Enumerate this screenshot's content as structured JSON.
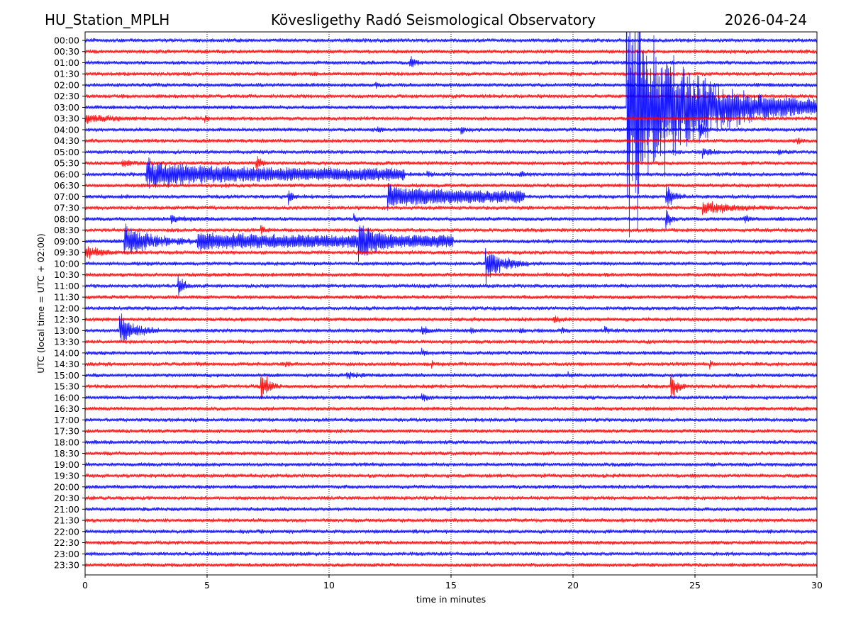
{
  "header": {
    "station": "HU_Station_MPLH",
    "observatory": "Kövesligethy Radó Seismological Observatory",
    "date": "2026-04-24"
  },
  "chart_data": {
    "type": "line",
    "subtype": "helicorder",
    "xlabel": "time in minutes",
    "ylabel": "UTC (local time = UTC + 02:00)",
    "xlim": [
      0,
      30
    ],
    "xticks": [
      "0",
      "5",
      "10",
      "15",
      "20",
      "25",
      "30"
    ],
    "grid": "vertical dotted at x ticks",
    "colors": [
      "#0000ff",
      "#ff0000"
    ],
    "rows": [
      "00:00",
      "00:30",
      "01:00",
      "01:30",
      "02:00",
      "02:30",
      "03:00",
      "03:30",
      "04:00",
      "04:30",
      "05:00",
      "05:30",
      "06:00",
      "06:30",
      "07:00",
      "07:30",
      "08:00",
      "08:30",
      "09:00",
      "09:30",
      "10:00",
      "10:30",
      "11:00",
      "11:30",
      "12:00",
      "12:30",
      "13:00",
      "13:30",
      "14:00",
      "14:30",
      "15:00",
      "15:30",
      "16:00",
      "16:30",
      "17:00",
      "17:30",
      "18:00",
      "18:30",
      "19:00",
      "19:30",
      "20:00",
      "20:30",
      "21:00",
      "21:30",
      "22:00",
      "22:30",
      "23:00",
      "23:30"
    ],
    "noise_amplitude": 0.15,
    "events": [
      {
        "row": "01:00",
        "start": 13.3,
        "duration": 0.5,
        "amplitude": 0.6
      },
      {
        "row": "02:00",
        "start": 11.9,
        "duration": 0.3,
        "amplitude": 0.3
      },
      {
        "row": "03:00",
        "start": 22.2,
        "duration": 7.8,
        "amplitude": 12
      },
      {
        "row": "03:30",
        "start": 0,
        "duration": 3.2,
        "amplitude": 0.35
      },
      {
        "row": "03:30",
        "start": 4.9,
        "duration": 0.3,
        "amplitude": 0.5
      },
      {
        "row": "04:00",
        "start": 25.2,
        "duration": 0.5,
        "amplitude": 0.8
      },
      {
        "row": "04:00",
        "start": 12.0,
        "duration": 0.4,
        "amplitude": 0.3
      },
      {
        "row": "04:00",
        "start": 15.4,
        "duration": 0.6,
        "amplitude": 0.3
      },
      {
        "row": "04:30",
        "start": 29.2,
        "duration": 0.5,
        "amplitude": 0.3
      },
      {
        "row": "05:00",
        "start": 25.3,
        "duration": 0.9,
        "amplitude": 0.45
      },
      {
        "row": "05:00",
        "start": 28.4,
        "duration": 0.4,
        "amplitude": 0.3
      },
      {
        "row": "05:30",
        "start": 7.0,
        "duration": 0.5,
        "amplitude": 0.9
      },
      {
        "row": "05:30",
        "start": 1.5,
        "duration": 1.5,
        "amplitude": 0.3
      },
      {
        "row": "06:00",
        "start": 2.5,
        "duration": 0.3,
        "amplitude": 2.0
      },
      {
        "row": "06:00",
        "start": 2.6,
        "duration": 10.5,
        "amplitude": 0.7
      },
      {
        "row": "06:00",
        "start": 14.0,
        "duration": 0.6,
        "amplitude": 0.3
      },
      {
        "row": "06:00",
        "start": 17.8,
        "duration": 0.6,
        "amplitude": 0.3
      },
      {
        "row": "07:00",
        "start": 8.3,
        "duration": 0.4,
        "amplitude": 1.0
      },
      {
        "row": "07:00",
        "start": 12.4,
        "duration": 5.6,
        "amplitude": 0.7
      },
      {
        "row": "07:00",
        "start": 23.8,
        "duration": 0.8,
        "amplitude": 1.3
      },
      {
        "row": "07:30",
        "start": 25.3,
        "duration": 3.0,
        "amplitude": 0.7
      },
      {
        "row": "08:00",
        "start": 3.5,
        "duration": 1.8,
        "amplitude": 0.3
      },
      {
        "row": "08:00",
        "start": 11.0,
        "duration": 0.3,
        "amplitude": 0.5
      },
      {
        "row": "08:00",
        "start": 23.8,
        "duration": 0.6,
        "amplitude": 0.9
      },
      {
        "row": "08:00",
        "start": 27.0,
        "duration": 0.6,
        "amplitude": 0.4
      },
      {
        "row": "08:30",
        "start": 7.2,
        "duration": 0.6,
        "amplitude": 0.45
      },
      {
        "row": "09:00",
        "start": 1.6,
        "duration": 3.0,
        "amplitude": 1.8
      },
      {
        "row": "09:00",
        "start": 4.6,
        "duration": 10.5,
        "amplitude": 0.35
      },
      {
        "row": "09:00",
        "start": 11.2,
        "duration": 1.6,
        "amplitude": 1.8
      },
      {
        "row": "09:30",
        "start": 0,
        "duration": 1.8,
        "amplitude": 0.55
      },
      {
        "row": "10:00",
        "start": 16.4,
        "duration": 1.8,
        "amplitude": 1.9
      },
      {
        "row": "11:00",
        "start": 3.8,
        "duration": 0.6,
        "amplitude": 1.3
      },
      {
        "row": "12:30",
        "start": 19.2,
        "duration": 0.5,
        "amplitude": 0.4
      },
      {
        "row": "13:00",
        "start": 1.4,
        "duration": 1.6,
        "amplitude": 1.6
      },
      {
        "row": "13:00",
        "start": 13.8,
        "duration": 0.8,
        "amplitude": 0.3
      },
      {
        "row": "13:00",
        "start": 15.8,
        "duration": 0.4,
        "amplitude": 0.3
      },
      {
        "row": "13:00",
        "start": 17.8,
        "duration": 0.4,
        "amplitude": 0.3
      },
      {
        "row": "13:00",
        "start": 19.5,
        "duration": 0.5,
        "amplitude": 0.35
      },
      {
        "row": "13:00",
        "start": 21.3,
        "duration": 0.3,
        "amplitude": 0.3
      },
      {
        "row": "14:00",
        "start": 13.8,
        "duration": 0.5,
        "amplitude": 0.3
      },
      {
        "row": "14:30",
        "start": 8.2,
        "duration": 0.3,
        "amplitude": 0.35
      },
      {
        "row": "14:30",
        "start": 14.2,
        "duration": 0.3,
        "amplitude": 0.35
      },
      {
        "row": "14:30",
        "start": 25.6,
        "duration": 0.3,
        "amplitude": 0.4
      },
      {
        "row": "15:00",
        "start": 10.7,
        "duration": 1.0,
        "amplitude": 0.35
      },
      {
        "row": "15:00",
        "start": 19.8,
        "duration": 0.3,
        "amplitude": 0.35
      },
      {
        "row": "15:30",
        "start": 7.2,
        "duration": 0.7,
        "amplitude": 2.3
      },
      {
        "row": "15:30",
        "start": 24.0,
        "duration": 0.6,
        "amplitude": 1.7
      },
      {
        "row": "16:00",
        "start": 13.8,
        "duration": 0.5,
        "amplitude": 0.35
      }
    ]
  }
}
